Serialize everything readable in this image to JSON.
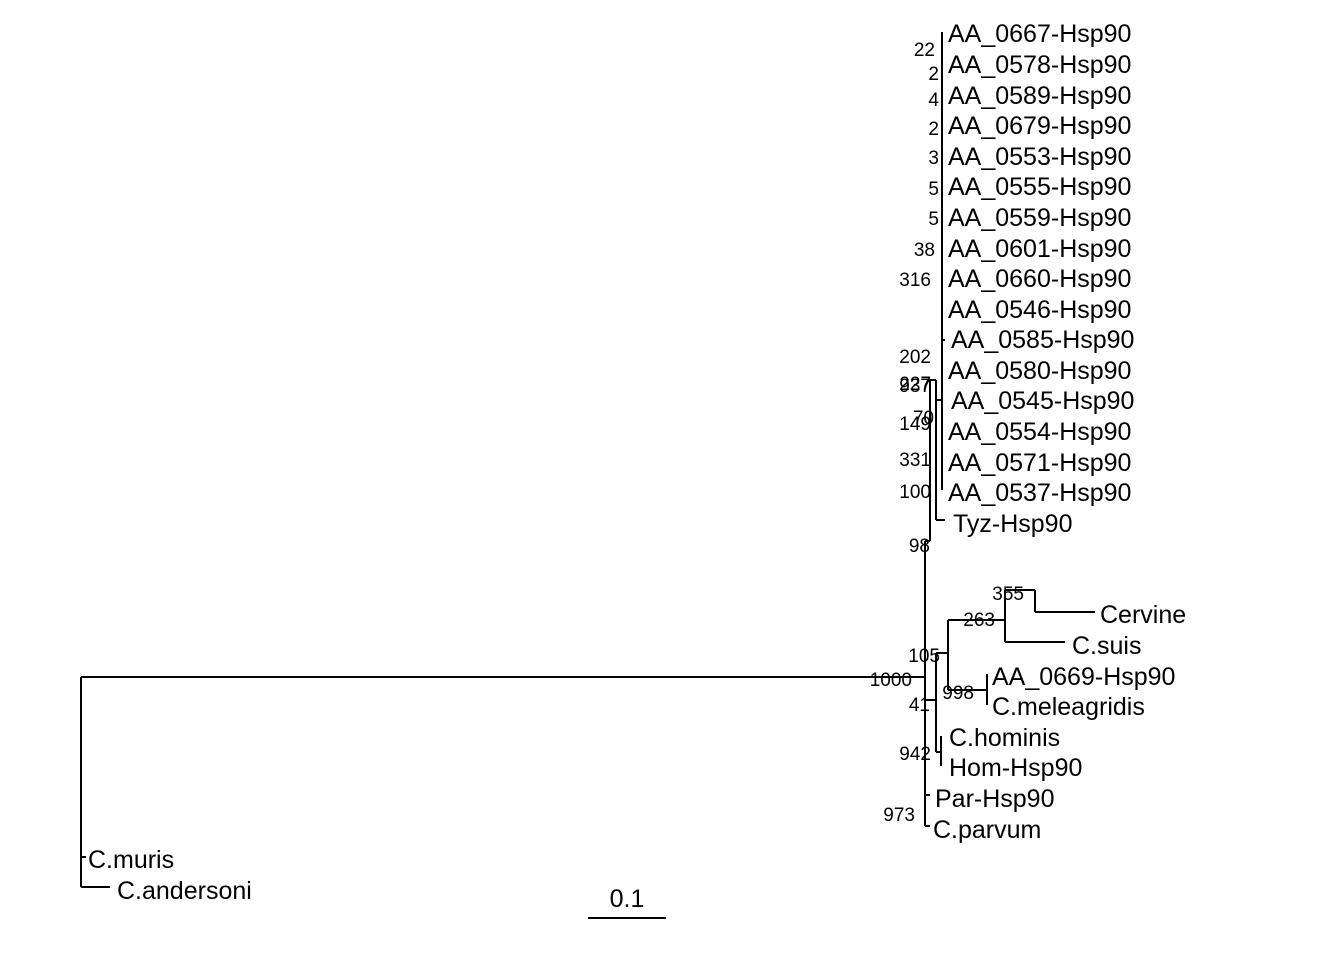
{
  "tree": {
    "leaves": [
      "AA_0667-Hsp90",
      "AA_0578-Hsp90",
      "AA_0589-Hsp90",
      "AA_0679-Hsp90",
      "AA_0553-Hsp90",
      "AA_0555-Hsp90",
      "AA_0559-Hsp90",
      "AA_0601-Hsp90",
      "AA_0660-Hsp90",
      "AA_0546-Hsp90",
      "AA_0585-Hsp90",
      "AA_0580-Hsp90",
      "AA_0545-Hsp90",
      "AA_0554-Hsp90",
      "AA_0571-Hsp90",
      "AA_0537-Hsp90",
      "Tyz-Hsp90",
      "Cervine",
      "C.suis",
      "AA_0669-Hsp90",
      "C.meleagridis",
      "C.hominis",
      "Hom-Hsp90",
      "Par-Hsp90",
      "C.parvum",
      "C.muris",
      "C.andersoni"
    ],
    "bootstrap": [
      "22",
      "2",
      "4",
      "2",
      "3",
      "5",
      "5",
      "38",
      "316",
      "202",
      "227",
      "937",
      "70",
      "149",
      "331",
      "100",
      "98",
      "355",
      "263",
      "105",
      "1000",
      "998",
      "41",
      "942",
      "973"
    ],
    "scale_bar": {
      "label": "0.1",
      "length": 0.1
    }
  }
}
